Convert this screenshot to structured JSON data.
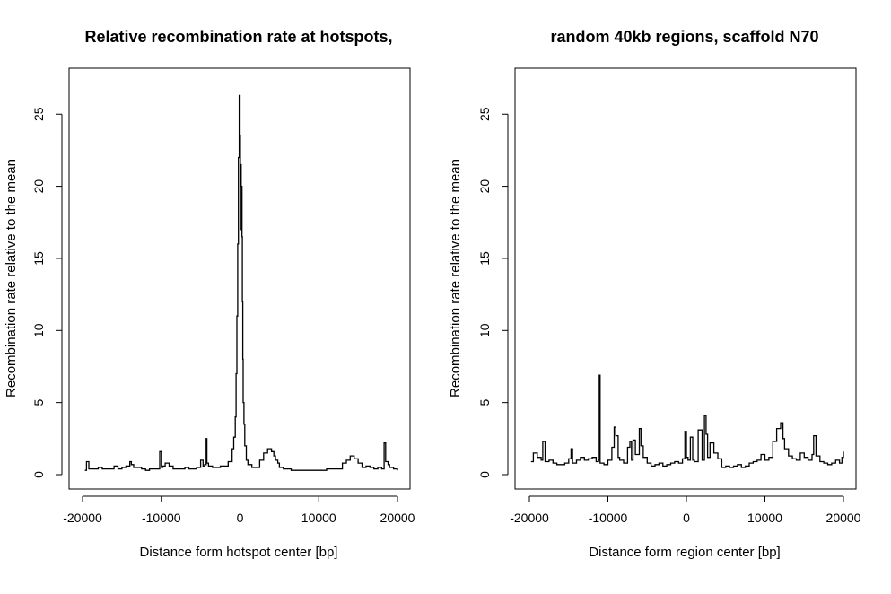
{
  "chart_data": [
    {
      "type": "line",
      "title": "Relative recombination rate at hotspots,",
      "xlabel": "Distance form hotspot center [bp]",
      "ylabel": "Recombination rate relative to the mean",
      "xlim": [
        -20000,
        20000
      ],
      "ylim": [
        0,
        27
      ],
      "xticks": [
        "-20000",
        "-10000",
        "0",
        "10000",
        "20000"
      ],
      "yticks": [
        "0",
        "5",
        "10",
        "15",
        "20",
        "25"
      ],
      "grid": false,
      "series": [
        {
          "x": [
            -19700,
            -19500,
            -19200,
            -18800,
            -18000,
            -17500,
            -17000,
            -16000,
            -15500,
            -15000,
            -14500,
            -14000,
            -13800,
            -13500,
            -13000,
            -12500,
            -12000,
            -11500,
            -11000,
            -10500,
            -10200,
            -10000,
            -9800,
            -9500,
            -9000,
            -8500,
            -8000,
            -7500,
            -7000,
            -6500,
            -6000,
            -5500,
            -5000,
            -4700,
            -4500,
            -4300,
            -4200,
            -4000,
            -3500,
            -3000,
            -2500,
            -2000,
            -1500,
            -1000,
            -800,
            -600,
            -500,
            -400,
            -300,
            -200,
            -100,
            0,
            50,
            100,
            150,
            200,
            250,
            300,
            350,
            400,
            500,
            600,
            800,
            1000,
            1500,
            2000,
            2500,
            3000,
            3500,
            4000,
            4300,
            4500,
            4800,
            5000,
            5500,
            6000,
            6500,
            7000,
            8000,
            9000,
            10000,
            11000,
            12000,
            12500,
            13000,
            13500,
            14000,
            14500,
            15000,
            15500,
            16000,
            16500,
            17000,
            17500,
            18000,
            18300,
            18500,
            18800,
            19000,
            19500,
            20000
          ],
          "values": [
            0.3,
            0.9,
            0.4,
            0.4,
            0.5,
            0.4,
            0.4,
            0.6,
            0.4,
            0.5,
            0.6,
            0.9,
            0.7,
            0.5,
            0.5,
            0.4,
            0.3,
            0.4,
            0.4,
            0.4,
            1.6,
            0.5,
            0.6,
            0.8,
            0.6,
            0.4,
            0.4,
            0.4,
            0.5,
            0.4,
            0.4,
            0.5,
            1.0,
            0.6,
            0.7,
            2.5,
            0.8,
            0.6,
            0.5,
            0.5,
            0.6,
            0.6,
            0.9,
            1.8,
            2.6,
            4.0,
            7.0,
            11.0,
            16.0,
            22.0,
            26.3,
            23.5,
            20.0,
            21.5,
            17.0,
            20.0,
            16.5,
            12.0,
            8.0,
            5.0,
            3.5,
            2.0,
            1.0,
            0.7,
            0.5,
            0.5,
            1.0,
            1.5,
            1.8,
            1.6,
            1.3,
            1.0,
            0.8,
            0.5,
            0.4,
            0.4,
            0.3,
            0.3,
            0.3,
            0.3,
            0.3,
            0.4,
            0.4,
            0.4,
            0.8,
            1.0,
            1.3,
            1.1,
            0.8,
            0.5,
            0.6,
            0.5,
            0.4,
            0.5,
            0.4,
            2.2,
            0.9,
            0.7,
            0.5,
            0.4,
            0.3
          ]
        }
      ]
    },
    {
      "type": "line",
      "title": "random 40kb regions, scaffold N70",
      "xlabel": "Distance form region center [bp]",
      "ylabel": "Recombination rate relative to the mean",
      "xlim": [
        -20000,
        20000
      ],
      "ylim": [
        0,
        27
      ],
      "xticks": [
        "-20000",
        "-10000",
        "0",
        "10000",
        "20000"
      ],
      "yticks": [
        "0",
        "5",
        "10",
        "15",
        "20",
        "25"
      ],
      "grid": false,
      "series": [
        {
          "x": [
            -19800,
            -19500,
            -19000,
            -18500,
            -18300,
            -18000,
            -17500,
            -17000,
            -16500,
            -16000,
            -15500,
            -15000,
            -14700,
            -14500,
            -14000,
            -13500,
            -13000,
            -12500,
            -12000,
            -11500,
            -11200,
            -11100,
            -11000,
            -10500,
            -10000,
            -9500,
            -9200,
            -9000,
            -8700,
            -8500,
            -8000,
            -7500,
            -7200,
            -7000,
            -6800,
            -6500,
            -6000,
            -5800,
            -5500,
            -5000,
            -4500,
            -4000,
            -3500,
            -3000,
            -2500,
            -2000,
            -1500,
            -1000,
            -500,
            -200,
            0,
            200,
            500,
            800,
            1000,
            1500,
            2000,
            2300,
            2500,
            2700,
            3000,
            3500,
            4000,
            4500,
            5000,
            5500,
            6000,
            6500,
            7000,
            7500,
            8000,
            8500,
            9000,
            9500,
            10000,
            10500,
            11000,
            11500,
            12000,
            12300,
            12500,
            13000,
            13500,
            14000,
            14500,
            15000,
            15500,
            16000,
            16200,
            16500,
            17000,
            17500,
            18000,
            18500,
            19000,
            19500,
            19800,
            20000
          ],
          "values": [
            0.9,
            1.5,
            1.2,
            1.0,
            2.3,
            0.9,
            1.0,
            0.8,
            0.7,
            0.7,
            0.8,
            1.1,
            1.8,
            0.8,
            1.0,
            1.2,
            1.0,
            1.1,
            1.2,
            0.9,
            1.0,
            6.9,
            0.8,
            0.7,
            1.0,
            1.9,
            3.3,
            2.7,
            1.2,
            1.0,
            0.8,
            1.9,
            2.3,
            1.0,
            2.4,
            1.4,
            3.2,
            2.0,
            1.2,
            0.8,
            0.6,
            0.7,
            0.8,
            0.6,
            0.7,
            0.8,
            0.9,
            0.8,
            1.1,
            3.0,
            1.2,
            1.0,
            2.6,
            1.0,
            0.9,
            3.1,
            1.0,
            4.1,
            2.8,
            1.2,
            2.2,
            1.5,
            1.1,
            0.5,
            0.6,
            0.5,
            0.6,
            0.7,
            0.5,
            0.6,
            0.8,
            0.9,
            1.0,
            1.4,
            1.0,
            1.2,
            2.3,
            3.2,
            3.6,
            2.5,
            1.8,
            1.3,
            1.1,
            1.0,
            1.5,
            1.2,
            1.0,
            1.4,
            2.7,
            1.3,
            0.9,
            0.8,
            0.7,
            0.8,
            1.0,
            0.8,
            1.2,
            1.6
          ]
        }
      ]
    }
  ]
}
